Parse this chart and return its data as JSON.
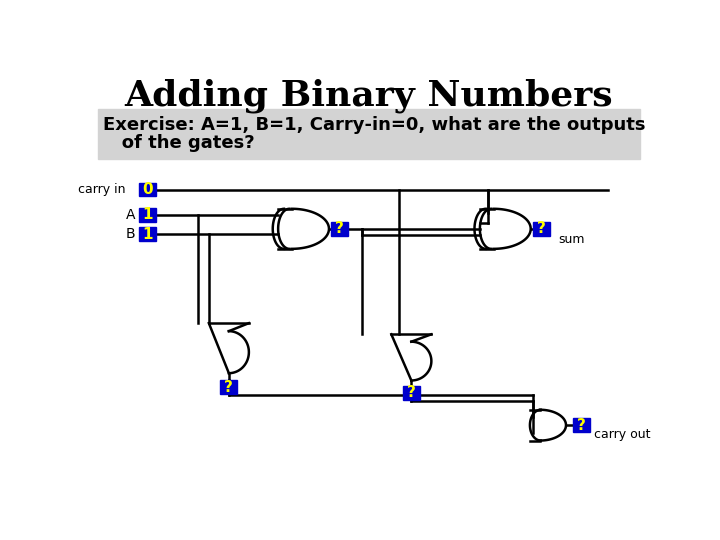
{
  "title": "Adding Binary Numbers",
  "subtitle_line1": "Exercise: A=1, B=1, Carry-in=0, what are the outputs",
  "subtitle_line2": "   of the gates?",
  "subtitle_bg": "#d3d3d3",
  "bg_color": "#ffffff",
  "title_fontsize": 26,
  "subtitle_fontsize": 13,
  "label_color": "#000000",
  "box_color": "#0000cc",
  "box_text_color": "#ffff00",
  "labels": {
    "carry_in": "carry in",
    "A": "A",
    "B": "B",
    "sum": "sum",
    "carry_out": "carry out"
  },
  "values": {
    "carry_in": "0",
    "A": "1",
    "B": "1",
    "q1": "?",
    "q2": "?",
    "q3": "?",
    "q4": "?",
    "q5": "?"
  }
}
